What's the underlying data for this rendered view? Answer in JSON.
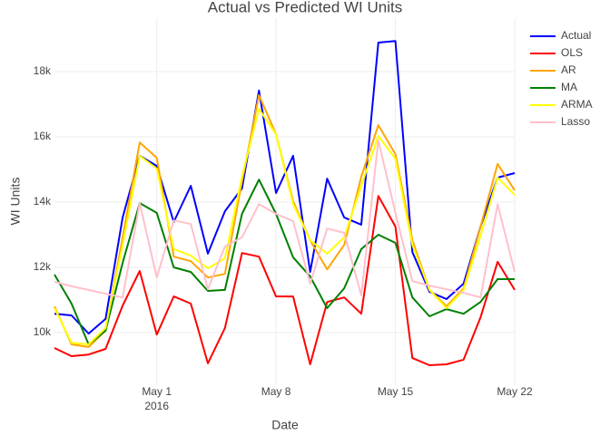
{
  "chart_data": {
    "type": "line",
    "title": "Actual vs Predicted WI Units",
    "x_label": "Date",
    "y_label": "WI Units",
    "x": [
      "2016-04-25",
      "2016-04-26",
      "2016-04-27",
      "2016-04-28",
      "2016-04-29",
      "2016-04-30",
      "2016-05-01",
      "2016-05-02",
      "2016-05-03",
      "2016-05-04",
      "2016-05-05",
      "2016-05-06",
      "2016-05-07",
      "2016-05-08",
      "2016-05-09",
      "2016-05-10",
      "2016-05-11",
      "2016-05-12",
      "2016-05-13",
      "2016-05-14",
      "2016-05-15",
      "2016-05-16",
      "2016-05-17",
      "2016-05-18",
      "2016-05-19",
      "2016-05-20",
      "2016-05-21",
      "2016-05-22"
    ],
    "xlim": [
      "2016-04-25",
      "2016-05-22"
    ],
    "xticks": [
      {
        "value": "2016-05-01",
        "label": "May 1"
      },
      {
        "value": "2016-05-08",
        "label": "May 8"
      },
      {
        "value": "2016-05-15",
        "label": "May 15"
      },
      {
        "value": "2016-05-22",
        "label": "May 22"
      }
    ],
    "x_year_label": "2016",
    "ylim": [
      8390,
      19640
    ],
    "yticks": [
      {
        "value": 10000,
        "label": "10k"
      },
      {
        "value": 12000,
        "label": "12k"
      },
      {
        "value": 14000,
        "label": "14k"
      },
      {
        "value": 16000,
        "label": "16k"
      },
      {
        "value": 18000,
        "label": "18k"
      }
    ],
    "grid": true,
    "legend": "outside right",
    "series": [
      {
        "name": "Actual",
        "color": "#0000ff",
        "values": [
          10580,
          10530,
          9970,
          10420,
          13530,
          15420,
          15110,
          13390,
          14500,
          12420,
          13720,
          14420,
          17420,
          14280,
          15420,
          11860,
          14720,
          13530,
          13310,
          18890,
          18940,
          12470,
          11250,
          11030,
          11500,
          13250,
          14750,
          14890
        ]
      },
      {
        "name": "OLS",
        "color": "#ff0000",
        "values": [
          9530,
          9280,
          9330,
          9500,
          10830,
          11890,
          9940,
          11110,
          10890,
          9060,
          10140,
          12440,
          12330,
          11110,
          11110,
          9030,
          10940,
          11080,
          10580,
          14190,
          13250,
          9220,
          9000,
          9030,
          9170,
          10470,
          12170,
          11310
        ]
      },
      {
        "name": "AR",
        "color": "#ffa500",
        "values": [
          10800,
          9640,
          9560,
          10060,
          12920,
          15830,
          15360,
          12330,
          12190,
          11690,
          11800,
          14640,
          17280,
          16080,
          14030,
          12830,
          11940,
          12690,
          14780,
          16360,
          15470,
          12830,
          11310,
          10810,
          11360,
          13250,
          15170,
          14360
        ]
      },
      {
        "name": "MA",
        "color": "#008000",
        "values": [
          11780,
          10890,
          9640,
          10060,
          12140,
          13970,
          13670,
          12000,
          11860,
          11280,
          11310,
          13640,
          14690,
          13640,
          12310,
          11720,
          10750,
          11360,
          12560,
          13000,
          12750,
          11080,
          10500,
          10720,
          10580,
          10940,
          11640,
          11640
        ]
      },
      {
        "name": "ARMA",
        "color": "#ffff00",
        "values": [
          10750,
          9690,
          9640,
          10140,
          12690,
          15420,
          15030,
          12560,
          12360,
          11970,
          12280,
          14780,
          16860,
          16080,
          13940,
          12830,
          12420,
          12920,
          14500,
          16030,
          15330,
          12690,
          11310,
          10750,
          11310,
          12970,
          14750,
          14220
        ]
      },
      {
        "name": "Lasso",
        "color": "#ffc0cb",
        "values": [
          11560,
          11420,
          11310,
          11190,
          11080,
          13970,
          11690,
          13440,
          13330,
          11330,
          12640,
          12920,
          13940,
          13640,
          13420,
          11500,
          13190,
          13060,
          11140,
          15890,
          13670,
          11580,
          11440,
          11330,
          11220,
          11080,
          13940,
          11860
        ]
      }
    ]
  }
}
